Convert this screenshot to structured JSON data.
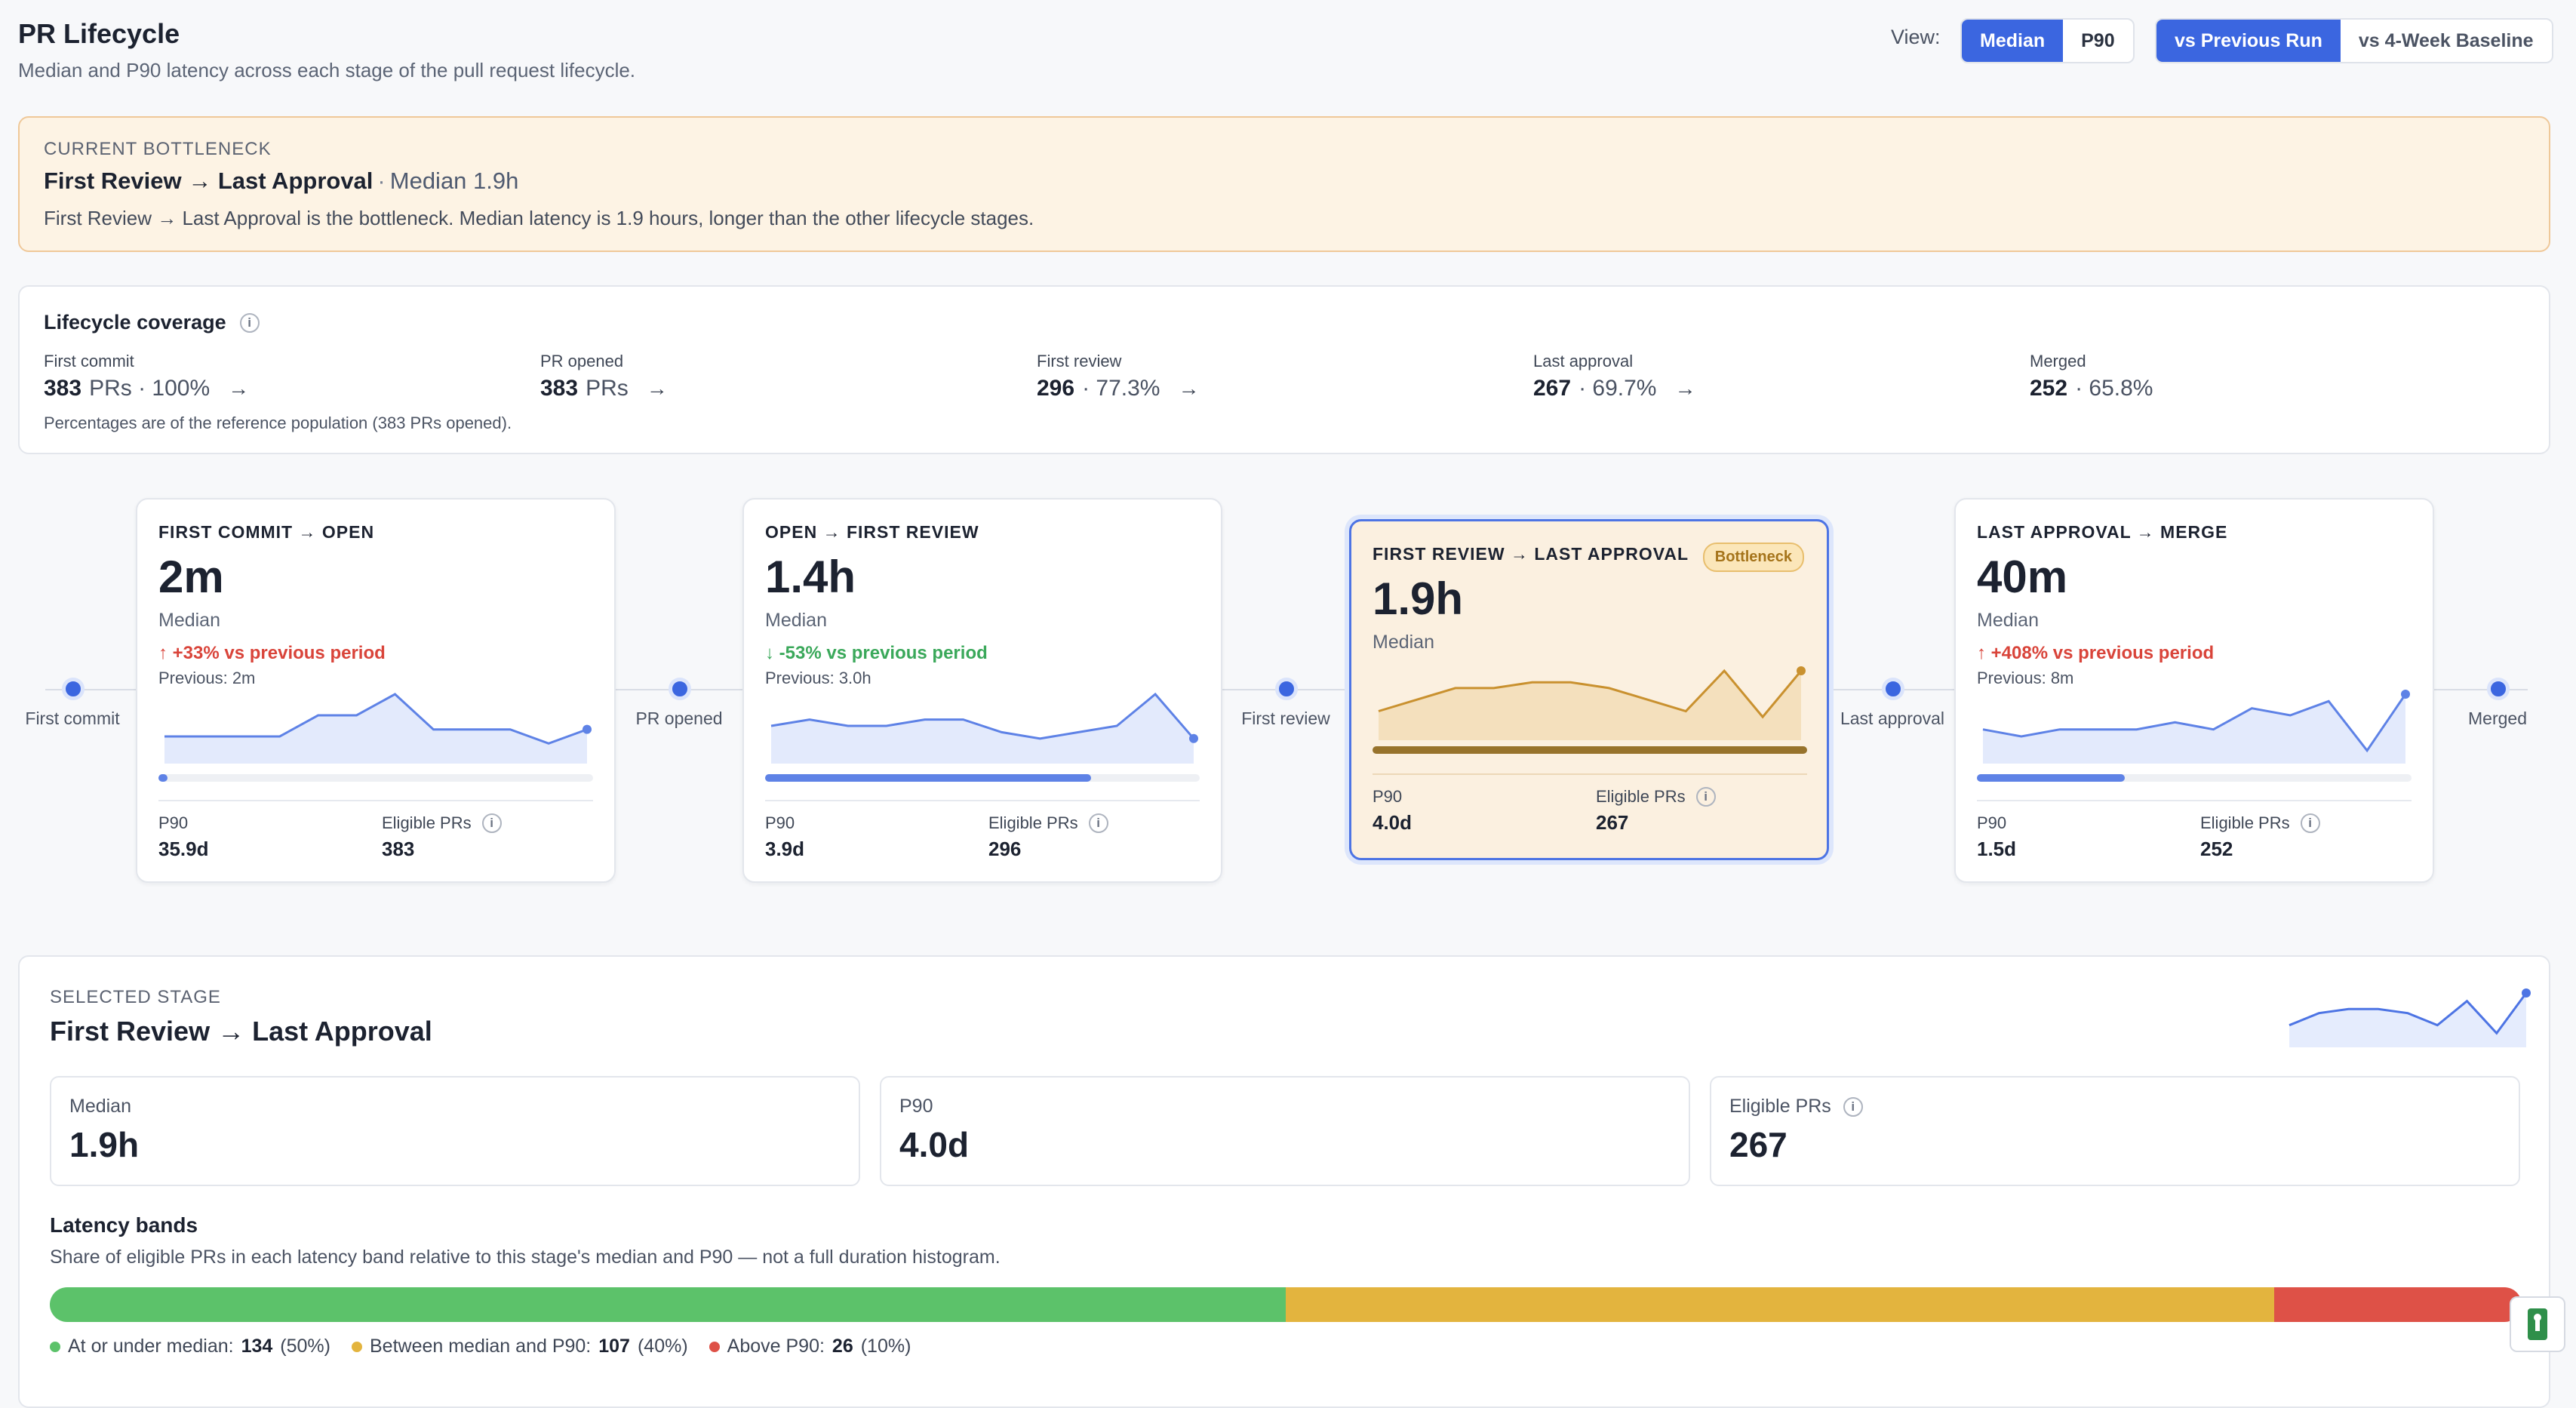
{
  "header": {
    "title": "PR Lifecycle",
    "subtitle": "Median and P90 latency across each stage of the pull request lifecycle.",
    "view_label": "View:",
    "view_options": [
      "Median",
      "P90"
    ],
    "compare_options": [
      "vs Previous Run",
      "vs 4-Week Baseline"
    ]
  },
  "banner": {
    "eyebrow": "CURRENT BOTTLENECK",
    "title": "First Review → Last Approval",
    "separator": "·",
    "median_text": "Median 1.9h",
    "description": "First Review → Last Approval is the bottleneck. Median latency is 1.9 hours, longer than the other lifecycle stages."
  },
  "coverage": {
    "title": "Lifecycle coverage",
    "info": "i",
    "items": [
      {
        "label": "First commit",
        "count": "383",
        "suffix": "PRs · 100%",
        "arrow": "→"
      },
      {
        "label": "PR opened",
        "count": "383",
        "suffix": "PRs",
        "arrow": "→"
      },
      {
        "label": "First review",
        "count": "296",
        "suffix": "· 77.3%",
        "arrow": "→"
      },
      {
        "label": "Last approval",
        "count": "267",
        "suffix": "· 69.7%",
        "arrow": "→"
      },
      {
        "label": "Merged",
        "count": "252",
        "suffix": "· 65.8%",
        "arrow": ""
      }
    ],
    "note": "Percentages are of the reference population (383 PRs opened)."
  },
  "nodes": [
    {
      "label": "First commit"
    },
    {
      "label": "PR opened"
    },
    {
      "label": "First review"
    },
    {
      "label": "Last approval"
    },
    {
      "label": "Merged"
    }
  ],
  "stages": [
    {
      "title": "First commit → open",
      "value": "2m",
      "median_label": "Median",
      "delta": "↑ +33% vs previous period",
      "delta_dir": "up",
      "previous": "Previous: 2m",
      "p90_label": "P90",
      "p90": "35.9d",
      "eligible_label": "Eligible PRs",
      "eligible": "383",
      "progress": 0.02,
      "spark": [
        3,
        3,
        3,
        3,
        6,
        6,
        9,
        4,
        4,
        4,
        2,
        4
      ]
    },
    {
      "title": "Open → first review",
      "value": "1.4h",
      "median_label": "Median",
      "delta": "↓ -53% vs previous period",
      "delta_dir": "down",
      "previous": "Previous: 3.0h",
      "p90_label": "P90",
      "p90": "3.9d",
      "eligible_label": "Eligible PRs",
      "eligible": "296",
      "progress": 0.75,
      "spark": [
        5,
        6,
        5,
        5,
        6,
        6,
        4,
        3,
        4,
        5,
        10,
        3
      ]
    },
    {
      "title": "First review → last approval",
      "value": "1.9h",
      "median_label": "Median",
      "badge": "Bottleneck",
      "p90_label": "P90",
      "p90": "4.0d",
      "eligible_label": "Eligible PRs",
      "eligible": "267",
      "progress": 1.0,
      "spark": [
        4,
        6,
        8,
        8,
        9,
        9,
        8,
        6,
        4,
        11,
        3,
        11
      ]
    },
    {
      "title": "Last approval → merge",
      "value": "40m",
      "median_label": "Median",
      "delta": "↑ +408% vs previous period",
      "delta_dir": "up",
      "previous": "Previous: 8m",
      "p90_label": "P90",
      "p90": "1.5d",
      "eligible_label": "Eligible PRs",
      "eligible": "252",
      "progress": 0.34,
      "spark": [
        4,
        3,
        4,
        4,
        4,
        5,
        4,
        7,
        6,
        8,
        1,
        9
      ]
    }
  ],
  "selected": {
    "eyebrow": "SELECTED STAGE",
    "title": "First Review → Last Approval",
    "metrics": [
      {
        "label": "Median",
        "value": "1.9h"
      },
      {
        "label": "P90",
        "value": "4.0d"
      },
      {
        "label": "Eligible PRs",
        "value": "267"
      }
    ],
    "bands_title": "Latency bands",
    "bands_subtitle": "Share of eligible PRs in each latency band relative to this stage's median and P90 — not a full duration histogram.",
    "bands": [
      {
        "label": "At or under median:",
        "count": "134",
        "pct": "(50%)",
        "share": 0.5,
        "color": "#5cc26a"
      },
      {
        "label": "Between median and P90:",
        "count": "107",
        "pct": "(40%)",
        "share": 0.4,
        "color": "#e3b43e"
      },
      {
        "label": "Above P90:",
        "count": "26",
        "pct": "(10%)",
        "share": 0.1,
        "color": "#de5147"
      }
    ],
    "spark": [
      4,
      7,
      8,
      8,
      7,
      4,
      10,
      2,
      12
    ]
  },
  "colors": {
    "accent": "#3b66e0",
    "bottleneck_bg": "#fdf3e4",
    "bottleneck_line": "#c9912f"
  }
}
